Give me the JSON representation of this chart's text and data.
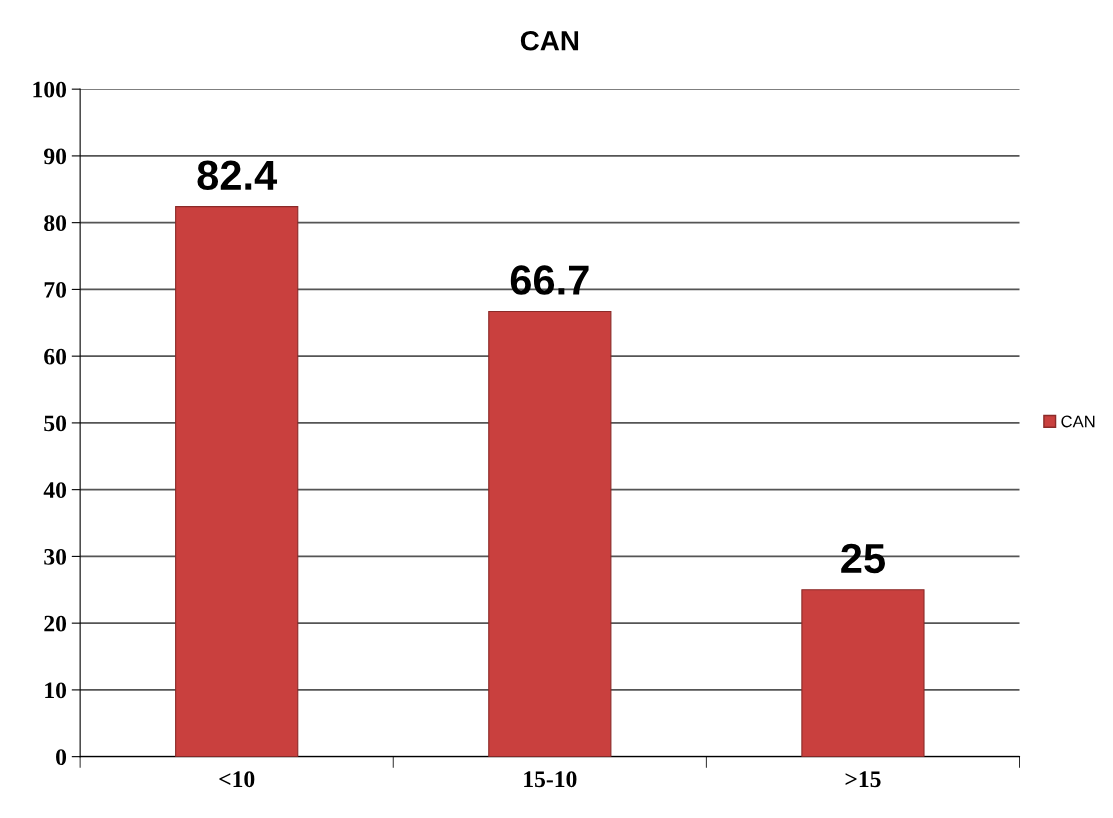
{
  "chart_data": {
    "type": "bar",
    "title": "CAN",
    "categories": [
      "<10",
      "15-10",
      ">15"
    ],
    "series": [
      {
        "name": "CAN",
        "color": "#c9403e",
        "values": [
          82.4,
          66.7,
          25
        ]
      }
    ],
    "ylim": [
      0,
      100
    ],
    "yticks": [
      0,
      10,
      20,
      30,
      40,
      50,
      60,
      70,
      80,
      90,
      100
    ],
    "grid": "y",
    "legend": "right",
    "data_labels": true
  }
}
